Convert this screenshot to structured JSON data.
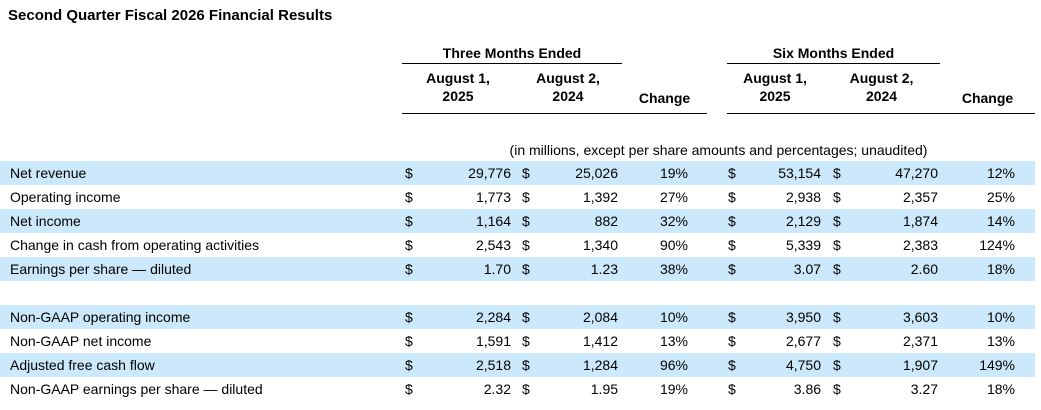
{
  "page_title": "Second Quarter Fiscal 2026 Financial Results",
  "colors": {
    "row_highlight": "#cbe9fa",
    "text": "#000000",
    "background": "#ffffff",
    "rule": "#000000"
  },
  "table": {
    "group_headers": [
      {
        "label": "Three Months Ended"
      },
      {
        "label": "Six Months Ended"
      }
    ],
    "column_headers": {
      "tm_2025": {
        "line1": "August 1,",
        "line2": "2025"
      },
      "tm_2024": {
        "line1": "August 2,",
        "line2": "2024"
      },
      "tm_change": "Change",
      "sm_2025": {
        "line1": "August 1,",
        "line2": "2025"
      },
      "sm_2024": {
        "line1": "August 2,",
        "line2": "2024"
      },
      "sm_change": "Change"
    },
    "units_note": "(in millions, except per share amounts and percentages; unaudited)",
    "currency_symbol": "$",
    "sections": [
      {
        "rows": [
          {
            "label": "Net revenue",
            "highlighted": true,
            "values": {
              "tm_2025": "29,776",
              "tm_2024": "25,026",
              "tm_change": "19%",
              "sm_2025": "53,154",
              "sm_2024": "47,270",
              "sm_change": "12%"
            }
          },
          {
            "label": "Operating income",
            "highlighted": false,
            "values": {
              "tm_2025": "1,773",
              "tm_2024": "1,392",
              "tm_change": "27%",
              "sm_2025": "2,938",
              "sm_2024": "2,357",
              "sm_change": "25%"
            }
          },
          {
            "label": "Net income",
            "highlighted": true,
            "values": {
              "tm_2025": "1,164",
              "tm_2024": "882",
              "tm_change": "32%",
              "sm_2025": "2,129",
              "sm_2024": "1,874",
              "sm_change": "14%"
            }
          },
          {
            "label": "Change in cash from operating activities",
            "highlighted": false,
            "values": {
              "tm_2025": "2,543",
              "tm_2024": "1,340",
              "tm_change": "90%",
              "sm_2025": "5,339",
              "sm_2024": "2,383",
              "sm_change": "124%"
            }
          },
          {
            "label": "Earnings per share — diluted",
            "highlighted": true,
            "values": {
              "tm_2025": "1.70",
              "tm_2024": "1.23",
              "tm_change": "38%",
              "sm_2025": "3.07",
              "sm_2024": "2.60",
              "sm_change": "18%"
            }
          }
        ]
      },
      {
        "rows": [
          {
            "label": "Non-GAAP operating income",
            "highlighted": true,
            "values": {
              "tm_2025": "2,284",
              "tm_2024": "2,084",
              "tm_change": "10%",
              "sm_2025": "3,950",
              "sm_2024": "3,603",
              "sm_change": "10%"
            }
          },
          {
            "label": "Non-GAAP net income",
            "highlighted": false,
            "values": {
              "tm_2025": "1,591",
              "tm_2024": "1,412",
              "tm_change": "13%",
              "sm_2025": "2,677",
              "sm_2024": "2,371",
              "sm_change": "13%"
            }
          },
          {
            "label": "Adjusted free cash flow",
            "highlighted": true,
            "values": {
              "tm_2025": "2,518",
              "tm_2024": "1,284",
              "tm_change": "96%",
              "sm_2025": "4,750",
              "sm_2024": "1,907",
              "sm_change": "149%"
            }
          },
          {
            "label": "Non-GAAP earnings per share — diluted",
            "highlighted": false,
            "values": {
              "tm_2025": "2.32",
              "tm_2024": "1.95",
              "tm_change": "19%",
              "sm_2025": "3.86",
              "sm_2024": "3.27",
              "sm_change": "18%"
            }
          }
        ]
      }
    ]
  }
}
